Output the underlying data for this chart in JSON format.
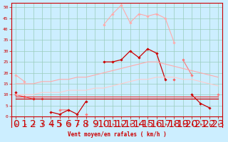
{
  "xlabel": "Vent moyen/en rafales ( km/h )",
  "x": [
    0,
    1,
    2,
    3,
    4,
    5,
    6,
    7,
    8,
    9,
    10,
    11,
    12,
    13,
    14,
    15,
    16,
    17,
    18,
    19,
    20,
    21,
    22,
    23
  ],
  "lines": [
    {
      "color": "#ffaaaa",
      "lw": 0.8,
      "marker": "D",
      "ms": 1.8,
      "y": [
        19,
        16,
        null,
        null,
        null,
        null,
        null,
        null,
        null,
        null,
        42,
        47,
        51,
        43,
        47,
        46,
        47,
        45,
        34,
        null,
        null,
        null,
        null,
        null
      ]
    },
    {
      "color": "#ff7777",
      "lw": 0.8,
      "marker": "D",
      "ms": 1.8,
      "y": [
        10,
        null,
        null,
        null,
        null,
        3,
        3,
        null,
        1,
        null,
        null,
        null,
        null,
        null,
        null,
        null,
        null,
        null,
        null,
        26,
        19,
        null,
        null,
        10
      ]
    },
    {
      "color": "#cc0000",
      "lw": 0.9,
      "marker": "D",
      "ms": 1.8,
      "y": [
        11,
        null,
        8,
        null,
        2,
        1,
        3,
        1,
        7,
        null,
        25,
        25,
        26,
        30,
        27,
        31,
        29,
        17,
        null,
        null,
        10,
        6,
        4,
        null
      ]
    },
    {
      "color": "#ff5555",
      "lw": 0.8,
      "marker": "D",
      "ms": 1.8,
      "y": [
        10,
        9,
        8,
        8,
        null,
        null,
        null,
        null,
        null,
        null,
        null,
        null,
        null,
        null,
        null,
        null,
        null,
        null,
        17,
        null,
        null,
        null,
        null,
        null
      ]
    },
    {
      "color": "#ffcccc",
      "lw": 0.8,
      "marker": null,
      "ms": 0,
      "y": [
        10,
        10,
        10,
        11,
        11,
        11,
        12,
        12,
        12,
        13,
        13,
        14,
        15,
        16,
        17,
        17,
        18,
        18,
        18,
        17,
        17,
        16,
        15,
        14
      ]
    },
    {
      "color": "#ffaaaa",
      "lw": 0.8,
      "marker": null,
      "ms": 0,
      "y": [
        15,
        15,
        15,
        16,
        16,
        17,
        17,
        18,
        18,
        19,
        20,
        21,
        22,
        23,
        24,
        25,
        25,
        24,
        23,
        22,
        21,
        20,
        19,
        18
      ]
    },
    {
      "color": "#cc0000",
      "lw": 0.9,
      "marker": null,
      "ms": 0,
      "y": [
        8,
        8,
        8,
        8,
        8,
        8,
        8,
        8,
        8,
        8,
        8,
        8,
        8,
        8,
        8,
        8,
        8,
        8,
        8,
        8,
        8,
        8,
        8,
        8
      ]
    },
    {
      "color": "#ee3333",
      "lw": 0.8,
      "marker": null,
      "ms": 0,
      "y": [
        9,
        9,
        9,
        9,
        9,
        9,
        9,
        9,
        9,
        9,
        9,
        9,
        9,
        9,
        9,
        9,
        9,
        9,
        9,
        9,
        9,
        9,
        9,
        9
      ]
    }
  ],
  "ylim": [
    -5,
    52
  ],
  "yticks": [
    0,
    5,
    10,
    15,
    20,
    25,
    30,
    35,
    40,
    45,
    50
  ],
  "bg_color": "#cceeff",
  "grid_color": "#99ccbb",
  "tick_color": "#cc0000",
  "xlabel_color": "#cc0000"
}
